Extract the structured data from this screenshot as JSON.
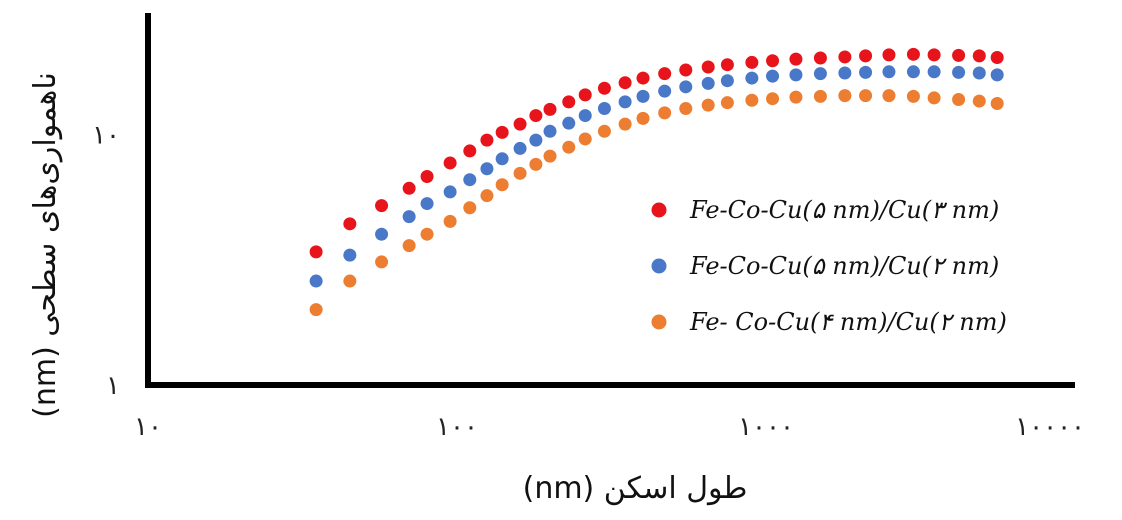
{
  "chart_data": {
    "type": "scatter",
    "title": "",
    "xlabel": "(nm) طول اسکن",
    "ylabel": "(nm) ناهمواری‌های سطحی",
    "x_scale": "log",
    "y_scale": "log",
    "xlim": [
      10,
      10000
    ],
    "ylim": [
      1,
      30
    ],
    "x_ticks": [
      {
        "value": 10,
        "label": "۱۰"
      },
      {
        "value": 100,
        "label": "۱۰۰"
      },
      {
        "value": 1000,
        "label": "۱۰۰۰"
      },
      {
        "value": 10000,
        "label": "۱۰۰۰۰"
      }
    ],
    "y_ticks": [
      {
        "value": 1,
        "label": "۱"
      },
      {
        "value": 10,
        "label": "۱۰"
      }
    ],
    "grid": false,
    "legend_position": "right",
    "series": [
      {
        "name": "Fe-Co-Cu(۵ nm)/Cu(۳ nm)",
        "color": "#e8141c",
        "x": [
          35,
          45,
          57,
          70,
          80,
          95,
          110,
          125,
          140,
          160,
          180,
          200,
          230,
          260,
          300,
          350,
          400,
          470,
          550,
          650,
          750,
          900,
          1050,
          1250,
          1500,
          1800,
          2100,
          2500,
          3000,
          3500,
          4200,
          4900,
          5600
        ],
        "y": [
          3.4,
          4.4,
          5.2,
          6.1,
          6.8,
          7.7,
          8.6,
          9.5,
          10.2,
          11.0,
          11.9,
          12.6,
          13.5,
          14.4,
          15.3,
          16.1,
          16.8,
          17.5,
          18.1,
          18.6,
          19.0,
          19.4,
          19.7,
          20.0,
          20.2,
          20.4,
          20.6,
          20.8,
          20.9,
          20.8,
          20.7,
          20.6,
          20.3
        ]
      },
      {
        "name": "Fe-Co-Cu(۵ nm)/Cu(۲ nm)",
        "color": "#4a78c8",
        "x": [
          35,
          45,
          57,
          70,
          80,
          95,
          110,
          125,
          140,
          160,
          180,
          200,
          230,
          260,
          300,
          350,
          400,
          470,
          550,
          650,
          750,
          900,
          1050,
          1250,
          1500,
          1800,
          2100,
          2500,
          3000,
          3500,
          4200,
          4900,
          5600
        ],
        "y": [
          2.6,
          3.3,
          4.0,
          4.7,
          5.3,
          5.9,
          6.6,
          7.3,
          8.0,
          8.8,
          9.5,
          10.3,
          11.1,
          11.9,
          12.7,
          13.5,
          14.2,
          14.9,
          15.5,
          16.0,
          16.4,
          16.8,
          17.1,
          17.3,
          17.5,
          17.6,
          17.7,
          17.8,
          17.8,
          17.8,
          17.7,
          17.6,
          17.3
        ]
      },
      {
        "name": "Fe- Co-Cu(۴ nm)/Cu(۲ nm)",
        "color": "#ed7d31",
        "x": [
          35,
          45,
          57,
          70,
          80,
          95,
          110,
          125,
          140,
          160,
          180,
          200,
          230,
          260,
          300,
          350,
          400,
          470,
          550,
          650,
          750,
          900,
          1050,
          1250,
          1500,
          1800,
          2100,
          2500,
          3000,
          3500,
          4200,
          4900,
          5600
        ],
        "y": [
          2.0,
          2.6,
          3.1,
          3.6,
          4.0,
          4.5,
          5.1,
          5.7,
          6.3,
          7.0,
          7.6,
          8.2,
          8.9,
          9.6,
          10.3,
          11.0,
          11.6,
          12.2,
          12.7,
          13.1,
          13.4,
          13.7,
          13.9,
          14.1,
          14.2,
          14.3,
          14.3,
          14.3,
          14.2,
          14.0,
          13.8,
          13.6,
          13.3
        ]
      }
    ]
  }
}
